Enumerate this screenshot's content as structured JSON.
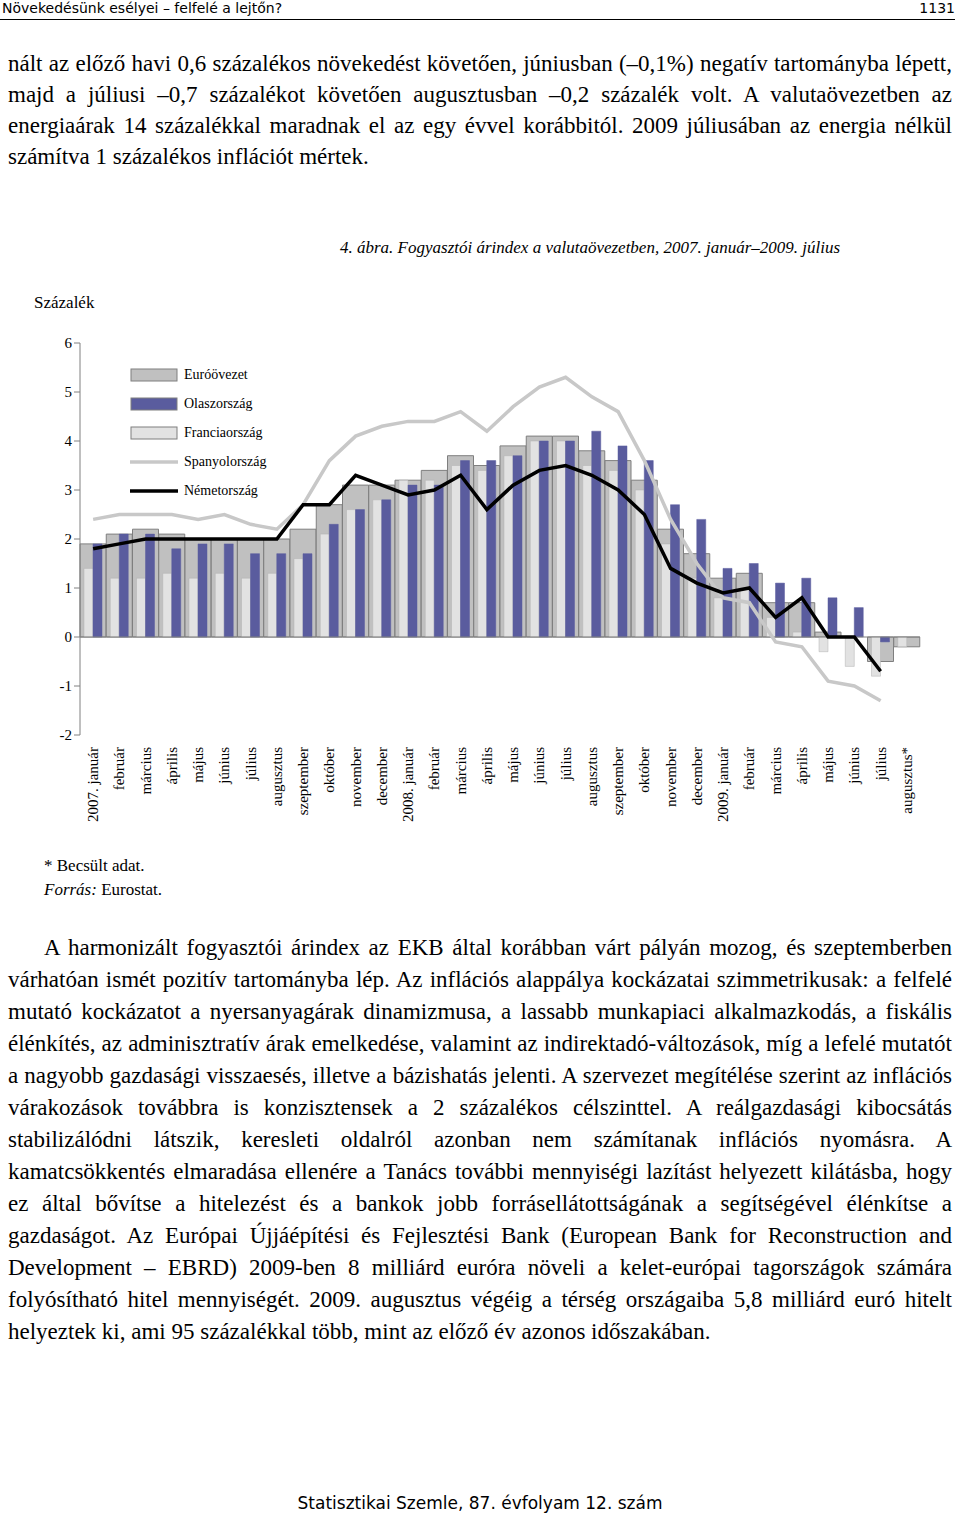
{
  "header": {
    "title": "Növekedésünk esélyei – felfelé a lejtőn?",
    "page": "1131"
  },
  "paragraph_top": "nált az előző havi 0,6 százalékos növekedést követően, júniusban (–0,1%) negatív tartományba lépett, majd a júliusi –0,7 százalékot követően augusztusban –0,2 százalék volt. A valutaövezetben az energiaárak 14 százalékkal maradnak el az egy évvel korábbitól. 2009 júliusában az energia nélkül számítva 1 százalékos inflációt mértek.",
  "caption": "4. ábra. Fogyasztói árindex a valutaövezetben, 2007. január–2009. július",
  "chart_data": {
    "type": "bar",
    "ylabel": "Százalék",
    "categories": [
      "2007. január",
      "február",
      "március",
      "április",
      "május",
      "június",
      "július",
      "augusztus",
      "szeptember",
      "október",
      "november",
      "december",
      "2008. január",
      "február",
      "március",
      "április",
      "május",
      "június",
      "július",
      "augusztus",
      "szeptember",
      "október",
      "november",
      "december",
      "2009. január",
      "február",
      "március",
      "április",
      "május",
      "június",
      "július",
      "augusztus*"
    ],
    "series": [
      {
        "name": "Euróövezet",
        "type": "bar",
        "color": "#c0c0c0",
        "values": [
          1.9,
          2.1,
          2.2,
          2.1,
          2.0,
          2.0,
          2.0,
          2.0,
          2.2,
          2.7,
          3.1,
          3.1,
          3.2,
          3.4,
          3.7,
          3.5,
          3.9,
          4.1,
          4.1,
          3.8,
          3.6,
          3.2,
          2.2,
          1.7,
          1.2,
          1.3,
          0.7,
          0.7,
          0.1,
          0.0,
          -0.5,
          -0.2
        ]
      },
      {
        "name": "Olaszország",
        "type": "bar",
        "color": "#5a5c9e",
        "values": [
          1.9,
          2.1,
          2.1,
          1.8,
          1.9,
          1.9,
          1.7,
          1.7,
          1.7,
          2.3,
          2.6,
          2.8,
          3.1,
          3.1,
          3.6,
          3.6,
          3.7,
          4.0,
          4.0,
          4.2,
          3.9,
          3.6,
          2.7,
          2.4,
          1.4,
          1.5,
          1.1,
          1.2,
          0.8,
          0.6,
          -0.1,
          null
        ]
      },
      {
        "name": "Franciaország",
        "type": "bar",
        "color": "#e2e2e2",
        "values": [
          1.4,
          1.2,
          1.2,
          1.3,
          1.2,
          1.3,
          1.2,
          1.3,
          1.6,
          2.1,
          2.6,
          2.8,
          3.2,
          3.2,
          3.5,
          3.4,
          3.7,
          4.0,
          4.0,
          3.5,
          3.4,
          3.0,
          1.9,
          1.2,
          0.8,
          1.0,
          0.4,
          0.1,
          -0.3,
          -0.6,
          -0.8,
          -0.2
        ]
      },
      {
        "name": "Spanyolország",
        "type": "line",
        "color": "#c8c8c8",
        "values": [
          2.4,
          2.5,
          2.5,
          2.5,
          2.4,
          2.5,
          2.3,
          2.2,
          2.7,
          3.6,
          4.1,
          4.3,
          4.4,
          4.4,
          4.6,
          4.2,
          4.7,
          5.1,
          5.3,
          4.9,
          4.6,
          3.6,
          2.4,
          1.5,
          0.8,
          0.7,
          -0.1,
          -0.2,
          -0.9,
          -1.0,
          -1.3,
          null
        ]
      },
      {
        "name": "Németország",
        "type": "line",
        "color": "#000000",
        "values": [
          1.8,
          1.9,
          2.0,
          2.0,
          2.0,
          2.0,
          2.0,
          2.0,
          2.7,
          2.7,
          3.3,
          3.1,
          2.9,
          3.0,
          3.3,
          2.6,
          3.1,
          3.4,
          3.5,
          3.3,
          3.0,
          2.5,
          1.4,
          1.1,
          0.9,
          1.0,
          0.4,
          0.8,
          0.0,
          0.0,
          -0.7,
          null
        ]
      }
    ],
    "ylim": [
      -2,
      6
    ],
    "yticks": [
      -2,
      -1,
      0,
      1,
      2,
      3,
      4,
      5,
      6
    ],
    "grid": false,
    "legend": "upper left"
  },
  "notes": {
    "footnote": "* Becsült adat.",
    "source_label": "Forrás:",
    "source": "Eurostat."
  },
  "paragraph_bottom": "A harmonizált fogyasztói árindex az EKB által korábban várt pályán mozog, és szeptemberben várhatóan ismét pozitív tartományba lép. Az inflációs alappálya kockázatai szimmetrikusak: a felfelé mutató kockázatot a nyersanyagárak dinamizmusa, a lassabb munkapiaci alkalmazkodás, a fiskális élénkítés, az adminisztratív árak emelkedése, valamint az indirektadó-változások, míg a lefelé mutatót a nagyobb gazdasági visszaesés, illetve a bázishatás jelenti. A szervezet megítélése szerint az inflációs várakozások továbbra is konzisztensek a 2 százalékos célszinttel. A reálgazdasági kibocsátás stabilizálódni látszik, keresleti oldalról azonban nem számítanak inflációs nyomásra. A kamatcsökkentés elmaradása ellenére a Tanács további mennyiségi lazítást helyezett kilátásba, hogy ez által bővítse a hitelezést és a bankok jobb forrásellátottságának a segítségével élénkítse a gazdaságot. Az Európai Újjáépítési és Fejlesztési Bank (European Bank for Reconstruction and Development – EBRD) 2009-ben 8 milliárd euróra növeli a kelet-európai tagországok számára folyósítható hitel mennyiségét. 2009. augusztus végéig a térség országaiba 5,8 milliárd euró hitelt helyeztek ki, ami 95 százalékkal több, mint az előző év azonos időszakában.",
  "footer": "Statisztikai Szemle, 87. évfolyam 12. szám"
}
